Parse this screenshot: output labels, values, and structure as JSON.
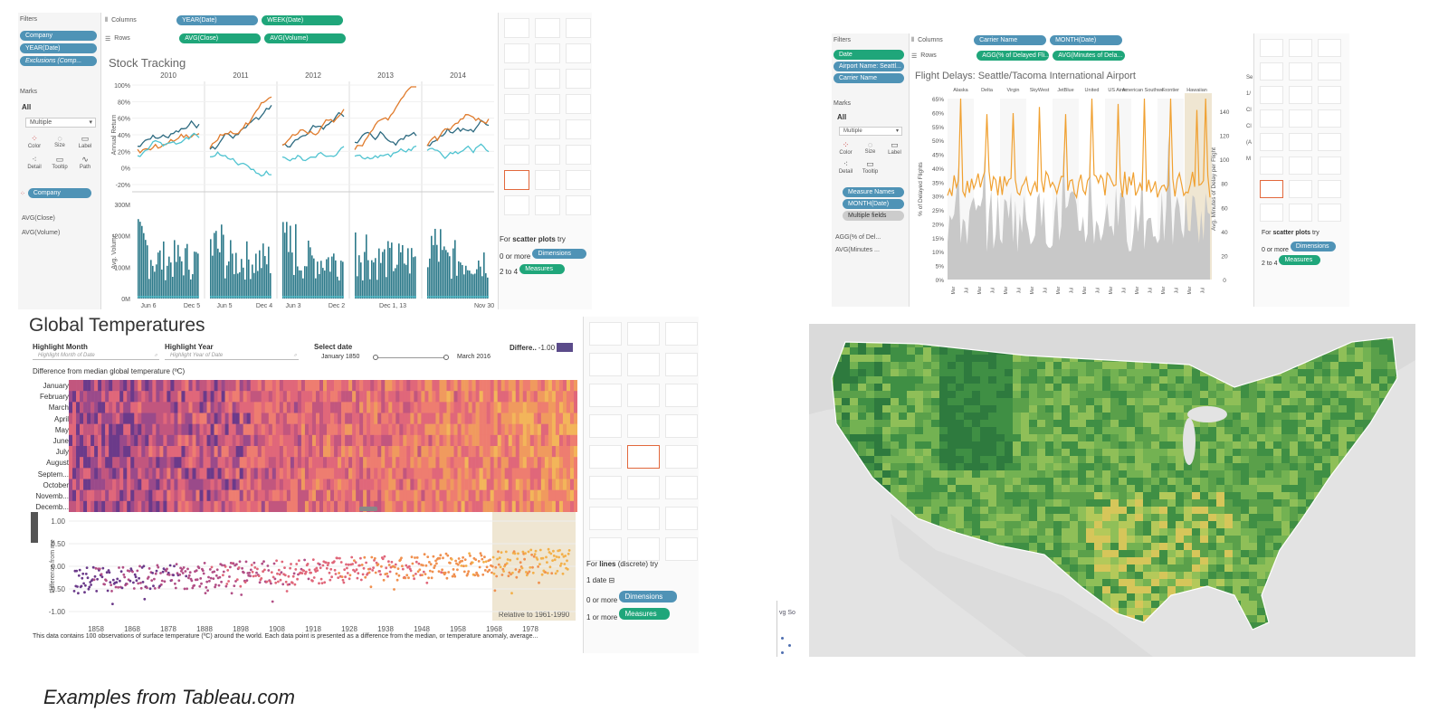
{
  "stock": {
    "filters_title": "Filters",
    "filters": [
      "Company",
      "YEAR(Date)",
      "Exclusions (Comp..."
    ],
    "columns_label": "Columns",
    "columns_pills": [
      "YEAR(Date)",
      "WEEK(Date)"
    ],
    "rows_label": "Rows",
    "rows_pills": [
      "AVG(Close)",
      "AVG(Volume)"
    ],
    "marks_title": "Marks",
    "marks_all": "All",
    "marks_type": "Multiple",
    "mark_buttons": [
      "Color",
      "Size",
      "Label",
      "Detail",
      "Tooltip",
      "Path"
    ],
    "marks_pill": "Company",
    "measures": [
      "AVG(Close)",
      "AVG(Volume)"
    ],
    "title": "Stock Tracking",
    "years": [
      "2010",
      "2011",
      "2012",
      "2013",
      "2014"
    ],
    "y1_label": "Annual Return",
    "y1_ticks": [
      "100%",
      "80%",
      "60%",
      "40%",
      "20%",
      "0%",
      "-20%"
    ],
    "y2_label": "Avg. Volume",
    "y2_ticks": [
      "300M",
      "200M",
      "100M",
      "0M"
    ],
    "x_ticks": [
      "Jun 6",
      "Dec 5",
      "Jun 5",
      "Dec 4",
      "Jun 3",
      "Dec 2",
      "Dec 1, 13",
      "Nov 30,"
    ],
    "hint_prefix": "For ",
    "hint_bold": "scatter plots",
    "hint_suffix": " try",
    "hint_line1": "0 or more",
    "hint_pill1": "Dimensions",
    "hint_line2": "2 to 4",
    "hint_pill2": "Measures"
  },
  "flight": {
    "filters_title": "Filters",
    "filters": [
      "Date",
      "Airport Name: Seattl...",
      "Carrier Name"
    ],
    "columns_label": "Columns",
    "columns_pills": [
      "Carrier Name",
      "MONTH(Date)"
    ],
    "rows_label": "Rows",
    "rows_pills": [
      "AGG(% of Delayed Fli...",
      "AVG(Minutes of Dela..."
    ],
    "marks_title": "Marks",
    "marks_all": "All",
    "marks_type": "Multiple",
    "mark_buttons": [
      "Color",
      "Size",
      "Label",
      "Detail",
      "Tooltip"
    ],
    "marks_pills": [
      "Measure Names",
      "MONTH(Date)",
      "Multiple fields"
    ],
    "measures": [
      "AGG(% of Del...",
      "AVG(Minutes ..."
    ],
    "title": "Flight Delays: Seattle/Tacoma International Airport",
    "carriers": [
      "Alaska",
      "Delta",
      "Virgin",
      "SkyWest",
      "JetBlue",
      "United",
      "US Airw..",
      "American Southwe..",
      "Frontier",
      "Hawaiian"
    ],
    "y1_label": "% of Delayed Flights",
    "y1_ticks": [
      "65%",
      "60%",
      "55%",
      "50%",
      "45%",
      "40%",
      "35%",
      "30%",
      "25%",
      "20%",
      "15%",
      "10%",
      "5%",
      "0%"
    ],
    "y2_label": "Avg. Minutes of Delay per Flight",
    "y2_ticks": [
      "140",
      "120",
      "100",
      "80",
      "60",
      "40",
      "20",
      "0"
    ],
    "x_tick": "Mar",
    "x_tick2": "Jul",
    "side_cut": [
      "Se",
      "1/",
      "Cl",
      "Cl",
      "(A",
      "M"
    ],
    "hint_prefix": "For ",
    "hint_bold": "scatter plots",
    "hint_suffix": " try",
    "hint_line1": "0 or more",
    "hint_pill1": "Dimensions",
    "hint_line2": "2 to 4",
    "hint_pill2": "Measures"
  },
  "temps": {
    "title": "Global Temperatures",
    "highlight_month_label": "Highlight Month",
    "highlight_month_placeholder": "Highlight Month of Date",
    "highlight_year_label": "Highlight Year",
    "highlight_year_placeholder": "Highlight Year of Date",
    "select_date_label": "Select date",
    "date_start": "January 1850",
    "date_end": "March 2016",
    "legend_label": "Differe..",
    "legend_value": "-1.00",
    "subtitle": "Difference from median global temperature (ºC)",
    "months": [
      "January",
      "February",
      "March",
      "April",
      "May",
      "June",
      "July",
      "August",
      "Septem...",
      "October",
      "Novemb...",
      "Decemb..."
    ],
    "y_label": "Difference from me",
    "y_ticks": [
      "1.00",
      "0.50",
      "0.00",
      "-0.50",
      "-1.00"
    ],
    "x_ticks": [
      "1858",
      "1868",
      "1878",
      "1888",
      "1898",
      "1908",
      "1918",
      "1928",
      "1938",
      "1948",
      "1958",
      "1968",
      "1978"
    ],
    "relative_label": "Relative to 1961-1990",
    "description": "This data contains 100 observations of surface temperature (ºC) around the world. Each data point is presented as a difference from the median, or temperature anomaly, average...",
    "hint_prefix": "For ",
    "hint_bold": "lines",
    "hint_suffix": " (discrete) try",
    "hint_line0": "1 date",
    "hint_line1": "0 or more",
    "hint_pill1": "Dimensions",
    "hint_line2": "1 or more",
    "hint_pill2": "Measures"
  },
  "map": {
    "legend_fragment": "vg So"
  },
  "caption": "Examples from Tableau.com"
}
